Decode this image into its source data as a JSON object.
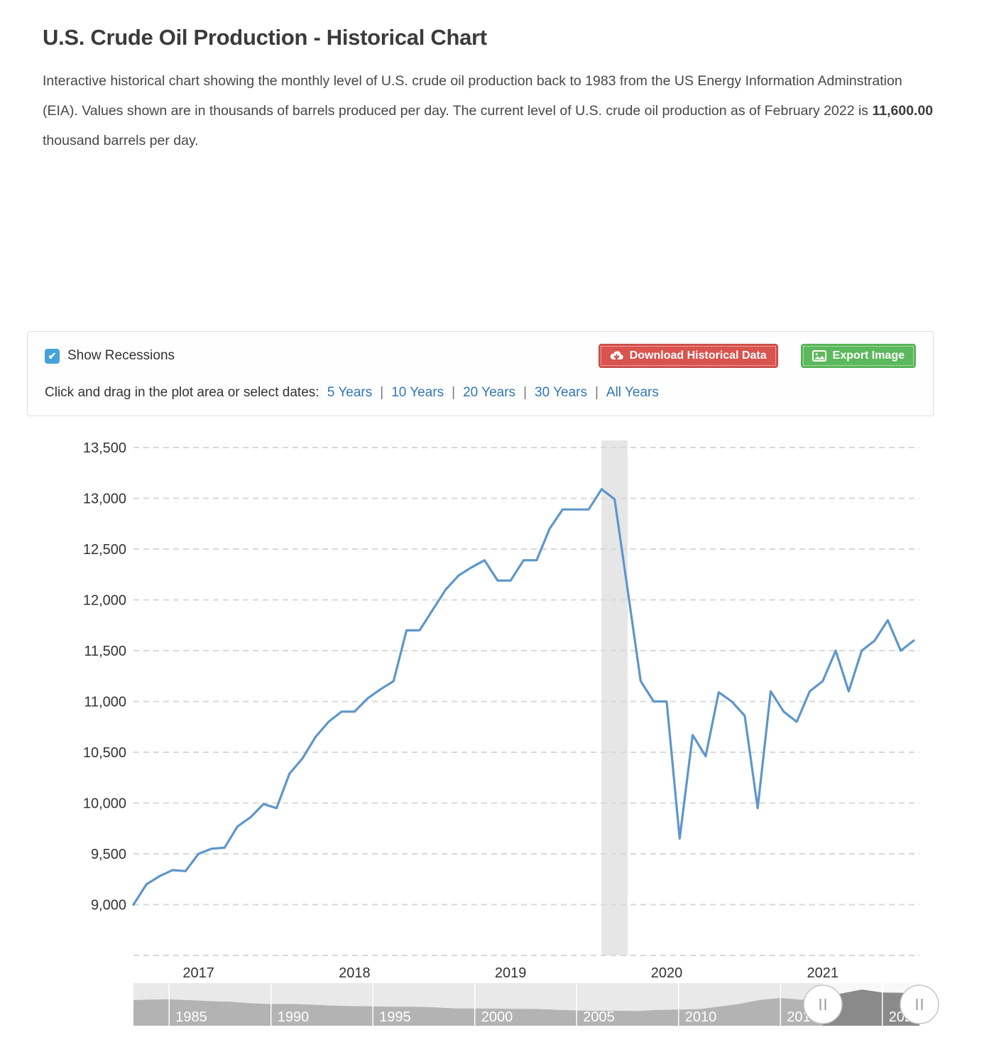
{
  "page": {
    "title": "U.S. Crude Oil Production - Historical Chart",
    "description": {
      "before": "Interactive historical chart showing the monthly level of U.S. crude oil production back to 1983 from the US Energy Information Adminstration (EIA). Values shown are in thousands of barrels produced per day. The current level of U.S. crude oil production as of February 2022 is ",
      "bold": "11,600.00",
      "after": " thousand barrels per day."
    }
  },
  "controls": {
    "show_recessions_label": "Show Recessions",
    "show_recessions_checked": true,
    "checkmark": "✔",
    "download_button": "Download Historical Data",
    "export_button": "Export Image",
    "range_prompt": "Click and drag in the plot area or select dates:",
    "ranges": [
      "5 Years",
      "10 Years",
      "20 Years",
      "30 Years",
      "All Years"
    ],
    "button_colors": {
      "download": "#d9534f",
      "export": "#5cb85c"
    },
    "link_color": "#3277b5"
  },
  "chart_data": {
    "type": "line",
    "title": "U.S. Crude Oil Production",
    "unit": "thousand barrels per day",
    "ylim": [
      8500,
      13500
    ],
    "grid": "dashed-horizontal",
    "legend": "none",
    "line_color": "#5e96cb",
    "grid_color": "#d8d8d8",
    "axis_label_color": "#333333",
    "months": [
      "2017-02",
      "2017-03",
      "2017-04",
      "2017-05",
      "2017-06",
      "2017-07",
      "2017-08",
      "2017-09",
      "2017-10",
      "2017-11",
      "2017-12",
      "2018-01",
      "2018-02",
      "2018-03",
      "2018-04",
      "2018-05",
      "2018-06",
      "2018-07",
      "2018-08",
      "2018-09",
      "2018-10",
      "2018-11",
      "2018-12",
      "2019-01",
      "2019-02",
      "2019-03",
      "2019-04",
      "2019-05",
      "2019-06",
      "2019-07",
      "2019-08",
      "2019-09",
      "2019-10",
      "2019-11",
      "2019-12",
      "2020-01",
      "2020-02",
      "2020-03",
      "2020-04",
      "2020-05",
      "2020-06",
      "2020-07",
      "2020-08",
      "2020-09",
      "2020-10",
      "2020-11",
      "2020-12",
      "2021-01",
      "2021-02",
      "2021-03",
      "2021-04",
      "2021-05",
      "2021-06",
      "2021-07",
      "2021-08",
      "2021-09",
      "2021-10",
      "2021-11",
      "2021-12",
      "2022-01",
      "2022-02"
    ],
    "values": [
      9000,
      9200,
      9280,
      9340,
      9330,
      9500,
      9550,
      9560,
      9770,
      9860,
      9990,
      9950,
      10290,
      10440,
      10650,
      10800,
      10900,
      10900,
      11030,
      11120,
      11200,
      11700,
      11700,
      11900,
      12100,
      12240,
      12320,
      12390,
      12190,
      12190,
      12390,
      12390,
      12700,
      12890,
      12890,
      12890,
      13090,
      12990,
      12100,
      11200,
      11000,
      11000,
      9650,
      10670,
      10460,
      11090,
      11000,
      10860,
      9950,
      11100,
      10900,
      10800,
      11100,
      11200,
      11500,
      11100,
      11500,
      11600,
      11800,
      11500,
      11600
    ],
    "y_ticks": [
      {
        "value": 13500,
        "label": "13,500"
      },
      {
        "value": 13000,
        "label": "13,000"
      },
      {
        "value": 12500,
        "label": "12,500"
      },
      {
        "value": 12000,
        "label": "12,000"
      },
      {
        "value": 11500,
        "label": "11,500"
      },
      {
        "value": 11000,
        "label": "11,000"
      },
      {
        "value": 10500,
        "label": "10,500"
      },
      {
        "value": 10000,
        "label": "10,000"
      },
      {
        "value": 9500,
        "label": "9,500"
      },
      {
        "value": 9000,
        "label": "9,000"
      },
      {
        "value": 8500,
        "label": ""
      }
    ],
    "x_ticks": [
      {
        "label": "2017",
        "month": "2017-07"
      },
      {
        "label": "2018",
        "month": "2018-07"
      },
      {
        "label": "2019",
        "month": "2019-07"
      },
      {
        "label": "2020",
        "month": "2020-07"
      },
      {
        "label": "2021",
        "month": "2021-07"
      }
    ],
    "recession_band": {
      "start": "2020-02",
      "end": "2020-04",
      "color": "#e6e6e6"
    },
    "navigator": {
      "years": [
        1983,
        1984,
        1985,
        1986,
        1987,
        1988,
        1989,
        1990,
        1991,
        1992,
        1993,
        1994,
        1995,
        1996,
        1997,
        1998,
        1999,
        2000,
        2001,
        2002,
        2003,
        2004,
        2005,
        2006,
        2007,
        2008,
        2009,
        2010,
        2011,
        2012,
        2013,
        2014,
        2015,
        2016,
        2017,
        2018,
        2019,
        2020,
        2021,
        2022
      ],
      "values": [
        8688,
        8879,
        8971,
        8680,
        8349,
        8140,
        7613,
        7355,
        7417,
        7171,
        6847,
        6662,
        6560,
        6465,
        6452,
        6252,
        5881,
        5822,
        5801,
        5746,
        5681,
        5419,
        5178,
        5088,
        5077,
        5000,
        5353,
        5482,
        5645,
        6497,
        7441,
        8759,
        9431,
        8831,
        9352,
        10964,
        12289,
        11283,
        11185,
        11600
      ],
      "tick_labels": [
        "1985",
        "1990",
        "1995",
        "2000",
        "2005",
        "2010",
        "2015",
        "2020"
      ],
      "selected_start": "2017-02",
      "selected_end": "2022-02",
      "handle_glyph": "||",
      "colors": {
        "bg": "#e9e9e9",
        "silhouette": "#b3b3b3",
        "selection_bg": "#f8f8f8",
        "selection_silhouette": "#8a8a8a",
        "divider": "#ffffff",
        "label": "#ffffff",
        "handle_fill": "#ffffff",
        "handle_border": "#c4c4c4",
        "handle_bars": "#9a9a9a"
      }
    }
  }
}
